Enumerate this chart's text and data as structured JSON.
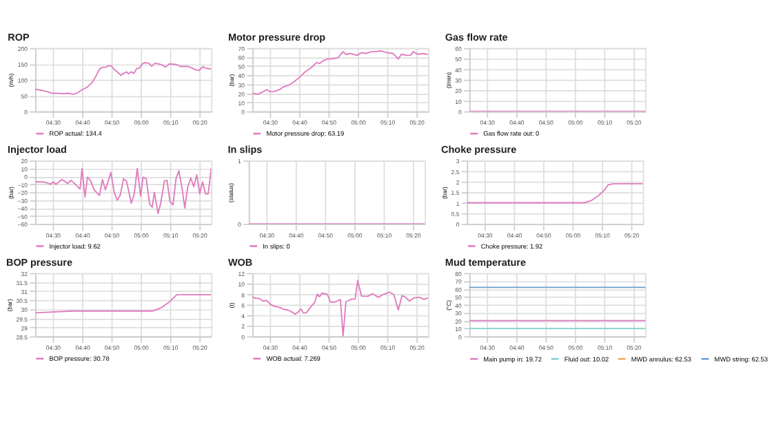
{
  "chart_data": [
    {
      "type": "line",
      "title": "ROP",
      "ylabel": "(m/h)",
      "xlim": [
        4.4,
        5.4
      ],
      "xticks": [
        {
          "value": 4.5,
          "label": "04:30"
        },
        {
          "value": 4.667,
          "label": "04:40"
        },
        {
          "value": 4.833,
          "label": "04:50"
        },
        {
          "value": 5.0,
          "label": "05:00"
        },
        {
          "value": 5.167,
          "label": "05:10"
        },
        {
          "value": 5.333,
          "label": "05:20"
        }
      ],
      "ylim": [
        0,
        200
      ],
      "yticks": [
        0,
        50,
        100,
        150,
        200
      ],
      "grid": true,
      "legend": "bottom",
      "series": [
        {
          "name": "ROP actual: 134.4",
          "color": "#e07bbf",
          "x": [
            4.4,
            4.434,
            4.465,
            4.497,
            4.529,
            4.56,
            4.592,
            4.613,
            4.634,
            4.666,
            4.697,
            4.723,
            4.744,
            4.765,
            4.782,
            4.803,
            4.82,
            4.835,
            4.849,
            4.866,
            4.887,
            4.904,
            4.919,
            4.93,
            4.946,
            4.961,
            4.976,
            4.993,
            5.008,
            5.024,
            5.046,
            5.062,
            5.081,
            5.103,
            5.119,
            5.141,
            5.162,
            5.183,
            5.204,
            5.225,
            5.246,
            5.267,
            5.288,
            5.309,
            5.33,
            5.352,
            5.373,
            5.4
          ],
          "values": [
            70,
            67,
            63,
            57,
            57,
            56,
            57,
            54,
            57,
            68,
            77,
            91,
            110,
            133,
            139,
            140,
            145,
            142,
            132,
            125,
            114,
            120,
            125,
            119,
            125,
            120,
            135,
            137,
            150,
            154,
            152,
            143,
            152,
            150,
            147,
            140,
            150,
            149,
            148,
            142,
            142,
            142,
            138,
            132,
            129,
            141,
            136,
            134
          ]
        }
      ]
    },
    {
      "type": "line",
      "title": "Motor pressure drop",
      "ylabel": "(bar)",
      "xlim": [
        4.4,
        5.4
      ],
      "xticks": [
        {
          "value": 4.5,
          "label": "04:30"
        },
        {
          "value": 4.667,
          "label": "04:40"
        },
        {
          "value": 4.833,
          "label": "04:50"
        },
        {
          "value": 5.0,
          "label": "05:00"
        },
        {
          "value": 5.167,
          "label": "05:10"
        },
        {
          "value": 5.333,
          "label": "05:20"
        }
      ],
      "ylim": [
        0,
        70
      ],
      "yticks": [
        0,
        10,
        20,
        30,
        40,
        50,
        60,
        70
      ],
      "grid": true,
      "legend": "bottom",
      "series": [
        {
          "name": "Motor pressure drop: 63.19",
          "color": "#e07bbf",
          "x": [
            4.402,
            4.43,
            4.455,
            4.482,
            4.499,
            4.524,
            4.555,
            4.576,
            4.608,
            4.639,
            4.67,
            4.702,
            4.733,
            4.765,
            4.782,
            4.803,
            4.828,
            4.848,
            4.88,
            4.89,
            4.916,
            4.932,
            4.958,
            4.996,
            5.021,
            5.048,
            5.075,
            5.1,
            5.131,
            5.163,
            5.2,
            5.23,
            5.247,
            5.279,
            5.299,
            5.314,
            5.342,
            5.369,
            5.398
          ],
          "values": [
            20,
            19,
            21,
            24,
            22,
            22,
            24,
            27,
            29,
            33,
            38,
            44,
            48,
            54,
            53,
            56,
            58,
            58,
            59,
            60,
            66,
            63,
            64,
            62,
            65,
            64,
            66,
            66,
            67,
            65,
            64,
            58,
            63,
            62,
            62,
            66,
            63,
            64,
            63
          ]
        }
      ]
    },
    {
      "type": "line",
      "title": "Gas flow rate",
      "ylabel": "(l/min)",
      "xlim": [
        4.4,
        5.4
      ],
      "xticks": [
        {
          "value": 4.5,
          "label": "04:30"
        },
        {
          "value": 4.667,
          "label": "04:40"
        },
        {
          "value": 4.833,
          "label": "04:50"
        },
        {
          "value": 5.0,
          "label": "05:00"
        },
        {
          "value": 5.167,
          "label": "05:10"
        },
        {
          "value": 5.333,
          "label": "05:20"
        }
      ],
      "ylim": [
        0,
        60
      ],
      "yticks": [
        0,
        10,
        20,
        30,
        40,
        50,
        60
      ],
      "grid": true,
      "legend": "bottom",
      "series": [
        {
          "name": "Gas flow rate out: 0",
          "color": "#e07bbf",
          "x": [
            4.4,
            5.4
          ],
          "values": [
            0,
            0
          ]
        }
      ]
    },
    {
      "type": "line",
      "title": "Injector load",
      "ylabel": "(bar)",
      "xlim": [
        4.4,
        5.4
      ],
      "xticks": [
        {
          "value": 4.5,
          "label": "04:30"
        },
        {
          "value": 4.667,
          "label": "04:40"
        },
        {
          "value": 4.833,
          "label": "04:50"
        },
        {
          "value": 5.0,
          "label": "05:00"
        },
        {
          "value": 5.167,
          "label": "05:10"
        },
        {
          "value": 5.333,
          "label": "05:20"
        }
      ],
      "ylim": [
        -60,
        20
      ],
      "yticks": [
        -60,
        -50,
        -40,
        -30,
        -20,
        -10,
        0,
        10,
        20
      ],
      "grid": true,
      "legend": "bottom",
      "series": [
        {
          "name": "Injector load: 9.62",
          "color": "#e07bbf",
          "x": [
            4.4,
            4.444,
            4.465,
            4.486,
            4.503,
            4.518,
            4.55,
            4.567,
            4.584,
            4.603,
            4.619,
            4.641,
            4.655,
            4.666,
            4.683,
            4.697,
            4.714,
            4.735,
            4.765,
            4.782,
            4.799,
            4.83,
            4.849,
            4.866,
            4.883,
            4.902,
            4.919,
            4.946,
            4.963,
            4.98,
            4.999,
            5.013,
            5.031,
            5.05,
            5.065,
            5.077,
            5.098,
            5.113,
            5.134,
            5.149,
            5.166,
            5.183,
            5.2,
            5.216,
            5.233,
            5.25,
            5.267,
            5.284,
            5.301,
            5.318,
            5.335,
            5.351,
            5.368,
            5.383,
            5.4
          ],
          "values": [
            -7,
            -7,
            -8,
            -10,
            -7,
            -10,
            -4,
            -6,
            -9,
            -5,
            -8,
            -13,
            -16,
            10,
            -26,
            -1,
            -5,
            -17,
            -24,
            -4,
            -17,
            5,
            -20,
            -30,
            -24,
            -3,
            -6,
            -34,
            -22,
            10,
            -25,
            -1,
            -3,
            -35,
            -39,
            -20,
            -47,
            -34,
            -6,
            -5,
            -32,
            -36,
            -3,
            7,
            -13,
            -40,
            -13,
            -2,
            -13,
            2,
            -22,
            -7,
            -22,
            -22,
            10
          ]
        }
      ]
    },
    {
      "type": "line",
      "title": "In slips",
      "ylabel": "(status)",
      "xlim": [
        4.4,
        5.4
      ],
      "xticks": [
        {
          "value": 4.5,
          "label": "04:30"
        },
        {
          "value": 4.667,
          "label": "04:40"
        },
        {
          "value": 4.833,
          "label": "04:50"
        },
        {
          "value": 5.0,
          "label": "05:00"
        },
        {
          "value": 5.167,
          "label": "05:10"
        },
        {
          "value": 5.333,
          "label": "05:20"
        }
      ],
      "ylim": [
        0,
        1
      ],
      "yticks": [
        0,
        1
      ],
      "grid": true,
      "legend": "bottom",
      "series": [
        {
          "name": "In slips: 0",
          "color": "#e07bbf",
          "x": [
            4.4,
            5.4
          ],
          "values": [
            0,
            0
          ]
        }
      ]
    },
    {
      "type": "line",
      "title": "Choke pressure",
      "ylabel": "(bar)",
      "xlim": [
        4.4,
        5.4
      ],
      "xticks": [
        {
          "value": 4.5,
          "label": "04:30"
        },
        {
          "value": 4.667,
          "label": "04:40"
        },
        {
          "value": 4.833,
          "label": "04:50"
        },
        {
          "value": 5.0,
          "label": "05:00"
        },
        {
          "value": 5.167,
          "label": "05:10"
        },
        {
          "value": 5.333,
          "label": "05:20"
        }
      ],
      "ylim": [
        0,
        3
      ],
      "yticks": [
        0,
        0.5,
        1,
        1.5,
        2,
        2.5,
        3
      ],
      "grid": true,
      "legend": "bottom",
      "series": [
        {
          "name": "Choke pressure: 1.92",
          "color": "#e07bbf",
          "x": [
            4.4,
            5.068,
            5.106,
            5.149,
            5.181,
            5.202,
            5.234,
            5.4
          ],
          "values": [
            1,
            1,
            1.1,
            1.35,
            1.6,
            1.85,
            1.9,
            1.9
          ]
        }
      ]
    },
    {
      "type": "line",
      "title": "BOP pressure",
      "ylabel": "(bar)",
      "xlim": [
        4.4,
        5.4
      ],
      "xticks": [
        {
          "value": 4.5,
          "label": "04:30"
        },
        {
          "value": 4.667,
          "label": "04:40"
        },
        {
          "value": 4.833,
          "label": "04:50"
        },
        {
          "value": 5.0,
          "label": "05:00"
        },
        {
          "value": 5.167,
          "label": "05:10"
        },
        {
          "value": 5.333,
          "label": "05:20"
        }
      ],
      "ylim": [
        28.5,
        32
      ],
      "yticks": [
        28.5,
        29,
        29.5,
        30,
        30.5,
        31,
        31.5,
        32
      ],
      "grid": true,
      "legend": "bottom",
      "series": [
        {
          "name": "BOP pressure: 30.78",
          "color": "#e07bbf",
          "x": [
            4.4,
            4.613,
            5.067,
            5.119,
            5.162,
            5.183,
            5.204,
            5.4
          ],
          "values": [
            29.8,
            29.9,
            29.9,
            30.1,
            30.4,
            30.6,
            30.8,
            30.8
          ]
        }
      ]
    },
    {
      "type": "line",
      "title": "WOB",
      "ylabel": "(t)",
      "xlim": [
        4.4,
        5.4
      ],
      "xticks": [
        {
          "value": 4.5,
          "label": "04:30"
        },
        {
          "value": 4.667,
          "label": "04:40"
        },
        {
          "value": 4.833,
          "label": "04:50"
        },
        {
          "value": 5.0,
          "label": "05:00"
        },
        {
          "value": 5.167,
          "label": "05:10"
        },
        {
          "value": 5.333,
          "label": "05:20"
        }
      ],
      "ylim": [
        0,
        12
      ],
      "yticks": [
        0,
        2,
        4,
        6,
        8,
        10,
        12
      ],
      "grid": true,
      "legend": "bottom",
      "series": [
        {
          "name": "WOB actual: 7.269",
          "color": "#e07bbf",
          "x": [
            4.4,
            4.419,
            4.44,
            4.461,
            4.482,
            4.503,
            4.524,
            4.555,
            4.58,
            4.601,
            4.622,
            4.643,
            4.66,
            4.677,
            4.691,
            4.708,
            4.733,
            4.756,
            4.769,
            4.782,
            4.796,
            4.823,
            4.828,
            4.844,
            4.87,
            4.901,
            4.916,
            4.932,
            4.958,
            4.985,
            4.999,
            5.021,
            5.058,
            5.083,
            5.117,
            5.142,
            5.18,
            5.205,
            5.23,
            5.251,
            5.268,
            5.293,
            5.32,
            5.352,
            5.377,
            5.398
          ],
          "values": [
            7.5,
            7.2,
            7.2,
            6.7,
            6.8,
            6.1,
            5.7,
            5.5,
            5.1,
            5,
            4.7,
            4.2,
            4.6,
            5.2,
            4.4,
            4.5,
            5.6,
            6.5,
            8,
            7.5,
            8.2,
            8,
            7.9,
            6.5,
            6.5,
            7,
            0,
            6.5,
            7,
            7.1,
            10.6,
            7.6,
            7.6,
            8.1,
            7.4,
            7.9,
            8.4,
            7.9,
            5,
            7.7,
            7.5,
            6.7,
            7.3,
            7.4,
            7,
            7.3
          ]
        }
      ]
    },
    {
      "type": "line",
      "title": "Mud temperature",
      "ylabel": "(°C)",
      "xlim": [
        4.4,
        5.4
      ],
      "xticks": [
        {
          "value": 4.5,
          "label": "04:30"
        },
        {
          "value": 4.667,
          "label": "04:40"
        },
        {
          "value": 4.833,
          "label": "04:50"
        },
        {
          "value": 5.0,
          "label": "05:00"
        },
        {
          "value": 5.167,
          "label": "05:10"
        },
        {
          "value": 5.333,
          "label": "05:20"
        }
      ],
      "ylim": [
        0,
        80
      ],
      "yticks": [
        0,
        10,
        20,
        30,
        40,
        50,
        60,
        70,
        80
      ],
      "grid": true,
      "legend": "bottom",
      "series": [
        {
          "name": "Main pump in: 19.72",
          "color": "#e07bbf",
          "x": [
            4.4,
            5.4
          ],
          "values": [
            20,
            20
          ]
        },
        {
          "name": "Fluid out: 10.02",
          "color": "#7fd3cf",
          "x": [
            4.4,
            5.4
          ],
          "values": [
            10,
            10
          ]
        },
        {
          "name": "MWD annulus: 62.53",
          "color": "#f5a95b"
        },
        {
          "name": "MWD string: 62.53",
          "color": "#6a9ecf",
          "x": [
            4.4,
            5.4
          ],
          "values": [
            62,
            62
          ]
        }
      ]
    }
  ]
}
